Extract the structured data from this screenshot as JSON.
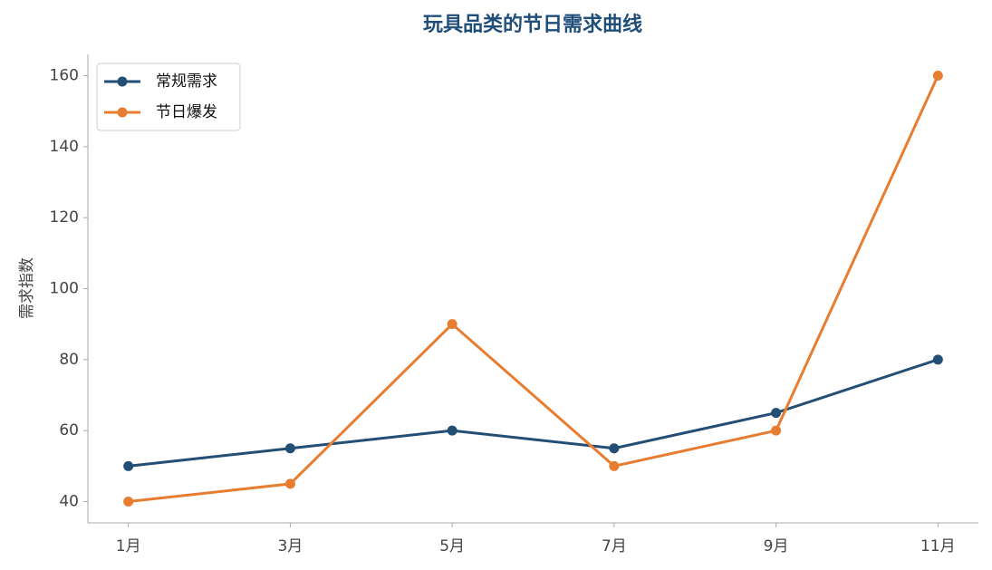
{
  "chart_data": {
    "type": "line",
    "title": "玩具品类的节日需求曲线",
    "y_label": "需求指数",
    "categories": [
      "1月",
      "3月",
      "5月",
      "7月",
      "9月",
      "11月"
    ],
    "series": [
      {
        "name": "常规需求",
        "color": "#234e76",
        "values": [
          50,
          55,
          60,
          55,
          65,
          80
        ]
      },
      {
        "name": "节日爆发",
        "color": "#e87d31",
        "values": [
          40,
          45,
          90,
          50,
          60,
          160
        ]
      }
    ],
    "ylim": [
      34,
      166
    ],
    "yticks": [
      40,
      60,
      80,
      100,
      120,
      140,
      160
    ],
    "grid": false,
    "legend": "upper-left"
  }
}
